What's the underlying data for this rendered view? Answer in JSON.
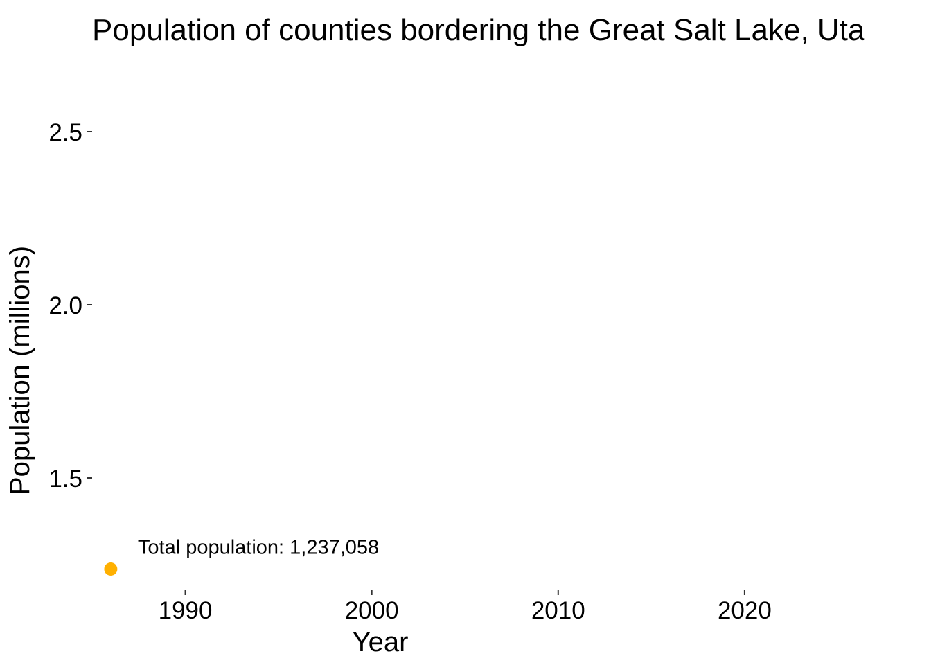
{
  "chart_data": {
    "type": "scatter",
    "title": "Population of counties bordering the Great Salt Lake, Uta",
    "xlabel": "Year",
    "ylabel": "Population (millions)",
    "xlim": [
      1985,
      2030
    ],
    "ylim": [
      1.19,
      2.66
    ],
    "x_ticks": [
      1990,
      2000,
      2010,
      2020
    ],
    "x_tick_labels": [
      "1990",
      "2000",
      "2010",
      "2020"
    ],
    "y_ticks": [
      1.5,
      2.0,
      2.5
    ],
    "y_tick_labels": [
      "1.5",
      "2.0",
      "2.5"
    ],
    "grid": false,
    "series": [
      {
        "x": [
          1986
        ],
        "y": [
          1.237058
        ],
        "color": "#FFB000"
      }
    ],
    "annotations": [
      {
        "text": "Total population: 1,237,058",
        "x": 1986,
        "y": 1.237058
      }
    ]
  }
}
